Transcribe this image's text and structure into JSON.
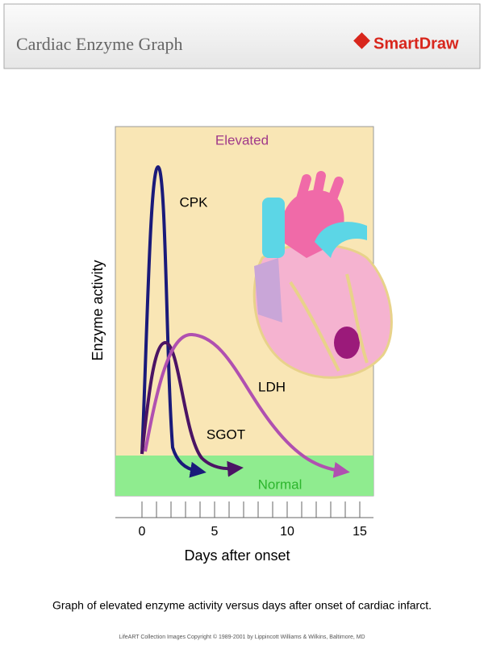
{
  "header": {
    "title": "Cardiac Enzyme Graph",
    "brand": "SmartDraw"
  },
  "graph": {
    "zones": {
      "upper": "Elevated",
      "lower": "Normal"
    },
    "curves": [
      "CPK",
      "SGOT",
      "LDH"
    ],
    "y_label": "Enzyme activity",
    "x_label": "Days after onset",
    "x_ticks": [
      0,
      5,
      10,
      15
    ]
  },
  "caption": "Graph of elevated enzyme activity versus days after onset of cardiac infarct.",
  "copyright": "LifeART Collection Images Copyright © 1989-2001 by Lippincott Williams & Wilkins, Baltimore, MD"
}
